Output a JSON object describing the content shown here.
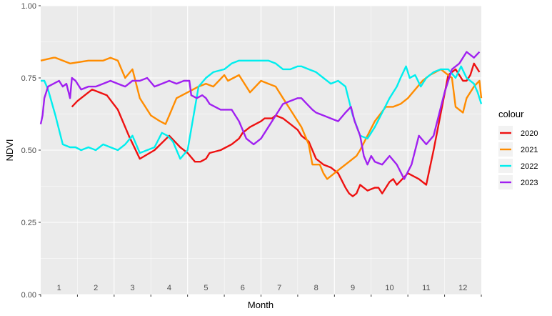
{
  "chart_data": {
    "type": "line",
    "title": "",
    "xlabel": "Month",
    "ylabel": "NDVI",
    "xlim": [
      0.5,
      12.5
    ],
    "ylim": [
      0,
      1
    ],
    "y_ticks": [
      0.0,
      0.25,
      0.5,
      0.75,
      1.0
    ],
    "y_tick_labels": [
      "0.00",
      "0.25",
      "0.50",
      "0.75",
      "1.00"
    ],
    "month_labels": [
      "1",
      "2",
      "3",
      "4",
      "5",
      "6",
      "7",
      "8",
      "9",
      "10",
      "11",
      "12"
    ],
    "grid": true,
    "legend": {
      "title": "colour",
      "position": "right"
    },
    "series": [
      {
        "name": "2020",
        "color": "#ee1111",
        "x": [
          1.35,
          1.5,
          1.9,
          2.3,
          2.6,
          2.9,
          3.2,
          3.6,
          4.0,
          4.3,
          4.5,
          4.7,
          4.85,
          5.0,
          5.1,
          5.4,
          5.7,
          5.9,
          6.0,
          6.2,
          6.5,
          6.6,
          6.8,
          6.9,
          7.1,
          7.3,
          7.5,
          7.6,
          7.8,
          8.0,
          8.2,
          8.4,
          8.6,
          8.8,
          8.9,
          9.0,
          9.1,
          9.2,
          9.4,
          9.6,
          9.7,
          9.8,
          10.0,
          10.1,
          10.2,
          10.5,
          10.8,
          11.0,
          11.2,
          11.4,
          11.6,
          11.8,
          12.0,
          12.1,
          12.2,
          12.3,
          12.45
        ],
        "y": [
          0.65,
          0.67,
          0.71,
          0.69,
          0.64,
          0.55,
          0.47,
          0.5,
          0.55,
          0.51,
          0.49,
          0.46,
          0.46,
          0.47,
          0.49,
          0.5,
          0.52,
          0.54,
          0.56,
          0.58,
          0.6,
          0.61,
          0.61,
          0.62,
          0.61,
          0.59,
          0.57,
          0.55,
          0.53,
          0.47,
          0.45,
          0.44,
          0.42,
          0.37,
          0.35,
          0.34,
          0.35,
          0.38,
          0.36,
          0.37,
          0.37,
          0.35,
          0.39,
          0.4,
          0.38,
          0.42,
          0.4,
          0.38,
          0.5,
          0.63,
          0.76,
          0.78,
          0.74,
          0.74,
          0.76,
          0.8,
          0.77
        ]
      },
      {
        "name": "2021",
        "color": "#ff8c00",
        "x": [
          0.5,
          0.85,
          0.9,
          1.3,
          1.8,
          2.2,
          2.4,
          2.6,
          2.8,
          3.0,
          3.2,
          3.5,
          3.75,
          3.9,
          4.0,
          4.2,
          4.5,
          4.8,
          5.0,
          5.2,
          5.5,
          5.6,
          5.9,
          6.2,
          6.5,
          6.7,
          6.9,
          7.1,
          7.3,
          7.6,
          7.8,
          7.9,
          8.1,
          8.2,
          8.3,
          8.5,
          8.7,
          8.9,
          9.1,
          9.2,
          9.4,
          9.6,
          9.9,
          10.1,
          10.3,
          10.5,
          10.9,
          11.1,
          11.4,
          11.7,
          11.8,
          12.0,
          12.1,
          12.3,
          12.45,
          12.5
        ],
        "y": [
          0.81,
          0.82,
          0.82,
          0.8,
          0.81,
          0.81,
          0.82,
          0.81,
          0.75,
          0.78,
          0.68,
          0.62,
          0.6,
          0.59,
          0.62,
          0.68,
          0.7,
          0.72,
          0.73,
          0.72,
          0.76,
          0.74,
          0.76,
          0.7,
          0.74,
          0.73,
          0.72,
          0.68,
          0.64,
          0.58,
          0.52,
          0.45,
          0.45,
          0.42,
          0.4,
          0.42,
          0.44,
          0.46,
          0.48,
          0.5,
          0.55,
          0.6,
          0.65,
          0.65,
          0.66,
          0.68,
          0.74,
          0.76,
          0.78,
          0.75,
          0.65,
          0.63,
          0.68,
          0.72,
          0.74,
          0.68
        ]
      },
      {
        "name": "2022",
        "color": "#00eeee",
        "x": [
          0.5,
          0.6,
          0.7,
          0.9,
          1.1,
          1.3,
          1.45,
          1.6,
          1.8,
          2.0,
          2.2,
          2.4,
          2.6,
          2.8,
          3.0,
          3.2,
          3.4,
          3.6,
          3.8,
          3.95,
          4.1,
          4.3,
          4.5,
          4.8,
          5.0,
          5.2,
          5.5,
          5.7,
          5.9,
          6.1,
          6.3,
          6.5,
          6.7,
          6.9,
          7.1,
          7.3,
          7.5,
          7.6,
          7.8,
          8.0,
          8.2,
          8.4,
          8.6,
          8.8,
          9.0,
          9.2,
          9.4,
          9.6,
          9.8,
          10.0,
          10.2,
          10.3,
          10.45,
          10.55,
          10.7,
          10.85,
          11.0,
          11.2,
          11.4,
          11.6,
          11.8,
          11.95,
          12.1,
          12.3,
          12.4,
          12.5
        ],
        "y": [
          0.74,
          0.74,
          0.71,
          0.62,
          0.52,
          0.51,
          0.51,
          0.5,
          0.51,
          0.5,
          0.52,
          0.51,
          0.5,
          0.52,
          0.55,
          0.49,
          0.5,
          0.51,
          0.56,
          0.55,
          0.53,
          0.47,
          0.5,
          0.72,
          0.75,
          0.77,
          0.78,
          0.8,
          0.81,
          0.81,
          0.81,
          0.81,
          0.81,
          0.8,
          0.78,
          0.78,
          0.79,
          0.79,
          0.78,
          0.77,
          0.75,
          0.73,
          0.74,
          0.72,
          0.62,
          0.55,
          0.54,
          0.58,
          0.63,
          0.68,
          0.72,
          0.75,
          0.79,
          0.75,
          0.76,
          0.72,
          0.75,
          0.77,
          0.78,
          0.78,
          0.75,
          0.79,
          0.75,
          0.73,
          0.7,
          0.66
        ]
      },
      {
        "name": "2023",
        "color": "#a020f0",
        "x": [
          0.5,
          0.55,
          0.6,
          0.7,
          0.85,
          1.0,
          1.1,
          1.2,
          1.3,
          1.35,
          1.45,
          1.6,
          1.8,
          2.0,
          2.2,
          2.4,
          2.6,
          2.8,
          3.0,
          3.2,
          3.4,
          3.6,
          3.8,
          4.0,
          4.2,
          4.4,
          4.55,
          4.6,
          4.75,
          4.9,
          5.0,
          5.1,
          5.4,
          5.7,
          5.9,
          6.1,
          6.3,
          6.5,
          6.7,
          6.9,
          7.1,
          7.3,
          7.5,
          7.6,
          7.75,
          7.9,
          8.0,
          8.2,
          8.4,
          8.6,
          8.8,
          8.95,
          9.05,
          9.2,
          9.3,
          9.4,
          9.5,
          9.6,
          9.8,
          10.0,
          10.2,
          10.4,
          10.6,
          10.8,
          11.0,
          11.2,
          11.5,
          11.7,
          11.9,
          12.1,
          12.3,
          12.45
        ],
        "y": [
          0.59,
          0.62,
          0.68,
          0.72,
          0.73,
          0.74,
          0.72,
          0.73,
          0.68,
          0.75,
          0.74,
          0.71,
          0.72,
          0.72,
          0.73,
          0.74,
          0.73,
          0.72,
          0.74,
          0.74,
          0.75,
          0.72,
          0.73,
          0.74,
          0.73,
          0.74,
          0.74,
          0.69,
          0.68,
          0.69,
          0.68,
          0.66,
          0.64,
          0.64,
          0.6,
          0.54,
          0.52,
          0.54,
          0.58,
          0.62,
          0.66,
          0.67,
          0.68,
          0.68,
          0.66,
          0.64,
          0.63,
          0.62,
          0.61,
          0.6,
          0.63,
          0.65,
          0.6,
          0.55,
          0.48,
          0.45,
          0.48,
          0.46,
          0.45,
          0.48,
          0.45,
          0.4,
          0.45,
          0.55,
          0.52,
          0.55,
          0.7,
          0.78,
          0.8,
          0.84,
          0.82,
          0.84
        ]
      }
    ]
  }
}
